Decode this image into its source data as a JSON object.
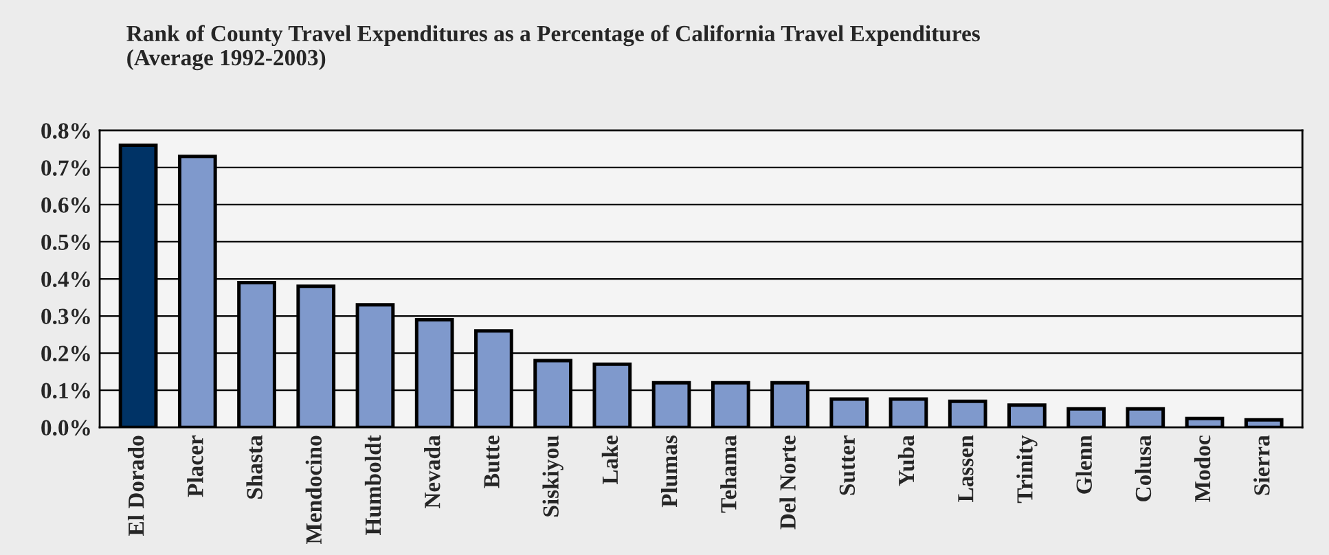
{
  "chart_data": {
    "type": "bar",
    "title": "Rank of County Travel Expenditures as a Percentage of California Travel Expenditures\n(Average 1992-2003)",
    "categories": [
      "El Dorado",
      "Placer",
      "Shasta",
      "Mendocino",
      "Humboldt",
      "Nevada",
      "Butte",
      "Siskiyou",
      "Lake",
      "Plumas",
      "Tehama",
      "Del Norte",
      "Sutter",
      "Yuba",
      "Lassen",
      "Trinity",
      "Glenn",
      "Colusa",
      "Modoc",
      "Sierra"
    ],
    "values": [
      0.76,
      0.73,
      0.39,
      0.38,
      0.33,
      0.29,
      0.26,
      0.18,
      0.17,
      0.12,
      0.12,
      0.12,
      0.076,
      0.076,
      0.07,
      0.06,
      0.05,
      0.05,
      0.024,
      0.02
    ],
    "colors": [
      "#003366",
      "#7f99cc",
      "#7f99cc",
      "#7f99cc",
      "#7f99cc",
      "#7f99cc",
      "#7f99cc",
      "#7f99cc",
      "#7f99cc",
      "#7f99cc",
      "#7f99cc",
      "#7f99cc",
      "#7f99cc",
      "#7f99cc",
      "#7f99cc",
      "#7f99cc",
      "#7f99cc",
      "#7f99cc",
      "#7f99cc",
      "#7f99cc"
    ],
    "ylim": [
      0,
      0.8
    ],
    "yticks": [
      {
        "value": 0,
        "label": "0.0%"
      },
      {
        "value": 0.1,
        "label": "0.1%"
      },
      {
        "value": 0.2,
        "label": "0.2%"
      },
      {
        "value": 0.3,
        "label": "0.3%"
      },
      {
        "value": 0.4,
        "label": "0.4%"
      },
      {
        "value": 0.5,
        "label": "0.5%"
      },
      {
        "value": 0.6,
        "label": "0.6%"
      },
      {
        "value": 0.7,
        "label": "0.7%"
      },
      {
        "value": 0.8,
        "label": "0.8%"
      }
    ],
    "grid": "y"
  }
}
